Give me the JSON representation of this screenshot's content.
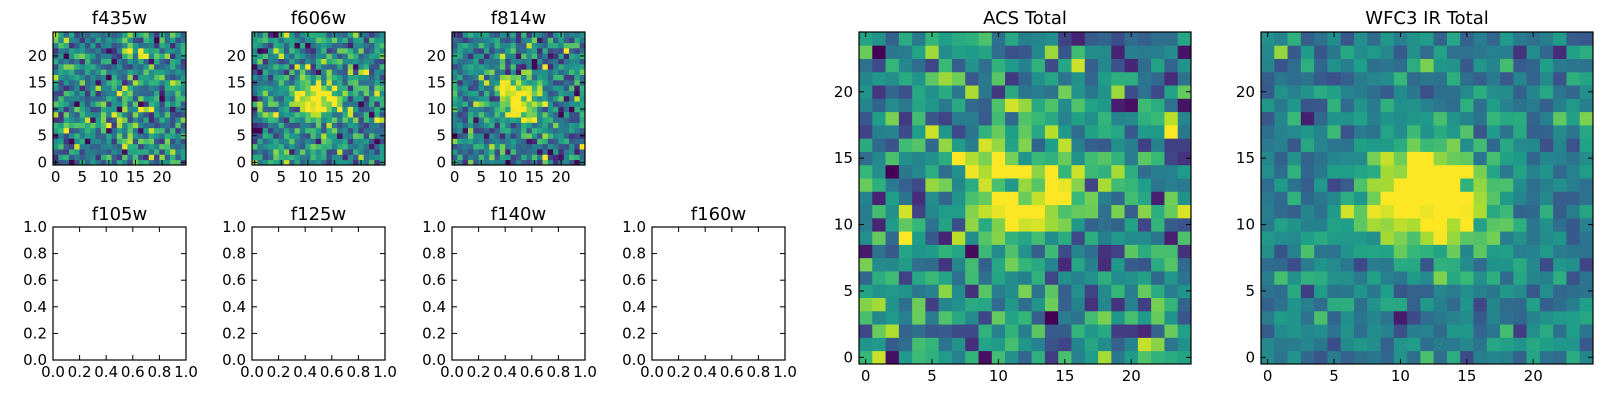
{
  "colormap": "viridis",
  "colors": {
    "viridis_low": "#440154",
    "viridis_mid": "#21918c",
    "viridis_high": "#fde725"
  },
  "chart_data": [
    {
      "type": "heatmap",
      "title": "f435w",
      "size": 25,
      "xticks": [
        "0",
        "5",
        "10",
        "15",
        "20"
      ],
      "yticks": [
        "0",
        "5",
        "10",
        "15",
        "20"
      ],
      "xlim": [
        -0.5,
        24.5
      ],
      "ylim": [
        -0.5,
        24.5
      ],
      "cmap": "viridis",
      "noise": 1.0,
      "blob": 0.15,
      "lo": -2.2,
      "hi": 2.6,
      "seed": 11
    },
    {
      "type": "heatmap",
      "title": "f606w",
      "size": 25,
      "xticks": [
        "0",
        "5",
        "10",
        "15",
        "20"
      ],
      "yticks": [
        "0",
        "5",
        "10",
        "15",
        "20"
      ],
      "xlim": [
        -0.5,
        24.5
      ],
      "ylim": [
        -0.5,
        24.5
      ],
      "cmap": "viridis",
      "noise": 1.0,
      "blob": 1.3,
      "lo": -2.2,
      "hi": 2.6,
      "seed": 23
    },
    {
      "type": "heatmap",
      "title": "f814w",
      "size": 25,
      "xticks": [
        "0",
        "5",
        "10",
        "15",
        "20"
      ],
      "yticks": [
        "0",
        "5",
        "10",
        "15",
        "20"
      ],
      "xlim": [
        -0.5,
        24.5
      ],
      "ylim": [
        -0.5,
        24.5
      ],
      "cmap": "viridis",
      "noise": 1.0,
      "blob": 1.6,
      "lo": -2.2,
      "hi": 2.8,
      "seed": 37
    },
    {
      "type": "line",
      "title": "f105w",
      "series": [],
      "xticks": [
        "0.0",
        "0.2",
        "0.4",
        "0.6",
        "0.8",
        "1.0"
      ],
      "yticks": [
        "0.0",
        "0.2",
        "0.4",
        "0.6",
        "0.8",
        "1.0"
      ],
      "xlim": [
        0,
        1
      ],
      "ylim": [
        0,
        1
      ]
    },
    {
      "type": "line",
      "title": "f125w",
      "series": [],
      "xticks": [
        "0.0",
        "0.2",
        "0.4",
        "0.6",
        "0.8",
        "1.0"
      ],
      "yticks": [
        "0.0",
        "0.2",
        "0.4",
        "0.6",
        "0.8",
        "1.0"
      ],
      "xlim": [
        0,
        1
      ],
      "ylim": [
        0,
        1
      ]
    },
    {
      "type": "line",
      "title": "f140w",
      "series": [],
      "xticks": [
        "0.0",
        "0.2",
        "0.4",
        "0.6",
        "0.8",
        "1.0"
      ],
      "yticks": [
        "0.0",
        "0.2",
        "0.4",
        "0.6",
        "0.8",
        "1.0"
      ],
      "xlim": [
        0,
        1
      ],
      "ylim": [
        0,
        1
      ]
    },
    {
      "type": "line",
      "title": "f160w",
      "series": [],
      "xticks": [
        "0.0",
        "0.2",
        "0.4",
        "0.6",
        "0.8",
        "1.0"
      ],
      "yticks": [
        "0.0",
        "0.2",
        "0.4",
        "0.6",
        "0.8",
        "1.0"
      ],
      "xlim": [
        0,
        1
      ],
      "ylim": [
        0,
        1
      ]
    },
    {
      "type": "heatmap",
      "title": "ACS Total",
      "size": 25,
      "xticks": [
        "0",
        "5",
        "10",
        "15",
        "20"
      ],
      "yticks": [
        "0",
        "5",
        "10",
        "15",
        "20"
      ],
      "xlim": [
        -0.5,
        24.5
      ],
      "ylim": [
        -0.5,
        24.5
      ],
      "cmap": "viridis",
      "noise": 1.0,
      "blob": 1.5,
      "lo": -2.4,
      "hi": 2.7,
      "seed": 53
    },
    {
      "type": "heatmap",
      "title": "WFC3 IR Total",
      "size": 25,
      "xticks": [
        "0",
        "5",
        "10",
        "15",
        "20"
      ],
      "yticks": [
        "0",
        "5",
        "10",
        "15",
        "20"
      ],
      "xlim": [
        -0.5,
        24.5
      ],
      "ylim": [
        -0.5,
        24.5
      ],
      "cmap": "viridis",
      "noise": 0.55,
      "blob": 2.2,
      "lo": -2.0,
      "hi": 2.6,
      "seed": 71
    }
  ]
}
